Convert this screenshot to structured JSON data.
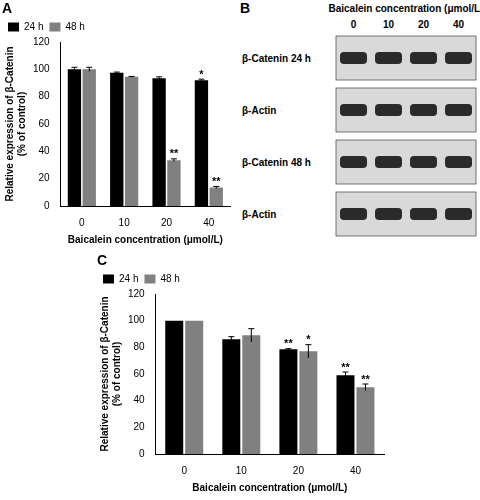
{
  "chart_data": [
    {
      "type": "bar",
      "label": "A",
      "x_label": "Baicalein concentration (μmol/L)",
      "y_label": [
        "Relative expression of β-Catenin",
        "(% of control)"
      ],
      "categories": [
        "0",
        "10",
        "20",
        "40"
      ],
      "series": [
        {
          "name": "24 h",
          "color": "#000000",
          "values": [
            100,
            97.5,
            93.5,
            92
          ],
          "errors": [
            1.5,
            0.5,
            1,
            0.8
          ],
          "significance": [
            null,
            null,
            null,
            "*"
          ]
        },
        {
          "name": "48 h",
          "color": "#808080",
          "values": [
            100,
            94.5,
            33.5,
            13.5
          ],
          "errors": [
            1.5,
            0.3,
            1,
            0.8
          ],
          "significance": [
            null,
            null,
            "**",
            "**"
          ]
        }
      ],
      "ylim": [
        0,
        120
      ],
      "yticks": [
        0,
        20,
        40,
        60,
        80,
        100,
        120
      ],
      "grid": false,
      "legend": "top-left"
    },
    {
      "type": "bar",
      "label": "C",
      "x_label": "Baicalein concentration (μmol/L)",
      "y_label": [
        "Relative expression of β-Catenin",
        "(% of control)"
      ],
      "categories": [
        "0",
        "10",
        "20",
        "40"
      ],
      "series": [
        {
          "name": "24 h",
          "color": "#000000",
          "values": [
            100,
            86,
            78.5,
            59
          ],
          "errors": [
            0,
            2,
            0.5,
            2.5
          ],
          "significance": [
            null,
            null,
            "**",
            "**"
          ]
        },
        {
          "name": "48 h",
          "color": "#808080",
          "values": [
            100,
            89,
            77,
            50
          ],
          "errors": [
            0,
            5,
            5,
            2.5
          ],
          "significance": [
            null,
            null,
            "*",
            "**"
          ]
        }
      ],
      "ylim": [
        0,
        120
      ],
      "yticks": [
        0,
        20,
        40,
        60,
        80,
        100,
        120
      ],
      "grid": false,
      "legend": "top-left"
    }
  ],
  "blot": {
    "label": "B",
    "title": "Baicalein concentration (μmol/L)",
    "lanes": [
      "0",
      "10",
      "20",
      "40"
    ],
    "rows": [
      "β-Catenin 24 h",
      "β-Actin",
      "β-Catenin 48 h",
      "β-Actin"
    ]
  }
}
